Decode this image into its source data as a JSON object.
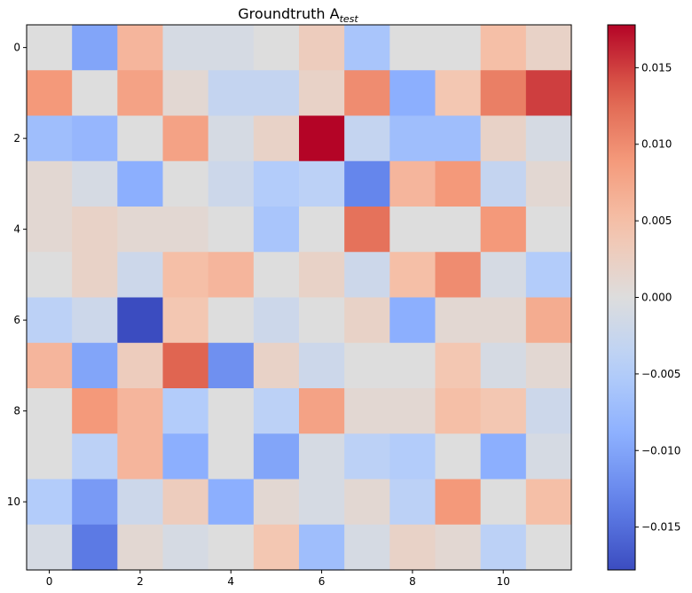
{
  "chart_data": {
    "type": "heatmap",
    "title": "Groundtruth A",
    "title_subscript": "test",
    "xlabel": "",
    "ylabel": "",
    "x_ticks": [
      "0",
      "2",
      "4",
      "6",
      "8",
      "10"
    ],
    "y_ticks": [
      "0",
      "2",
      "4",
      "6",
      "8",
      "10"
    ],
    "colormap": "coolwarm",
    "vmin": -0.0178,
    "vmax": 0.0178,
    "colorbar_ticks": [
      0.015,
      0.01,
      0.005,
      0.0,
      -0.005,
      -0.01,
      -0.015
    ],
    "colorbar_tick_labels": [
      "0.015",
      "0.010",
      "0.005",
      "0.000",
      "−0.005",
      "−0.010",
      "−0.015"
    ],
    "values": [
      [
        0.0,
        -0.01,
        0.006,
        -0.001,
        -0.001,
        0.0,
        0.003,
        -0.006,
        0.0,
        0.0,
        0.005,
        0.002
      ],
      [
        0.009,
        0.0,
        0.008,
        0.001,
        -0.003,
        -0.003,
        0.002,
        0.01,
        -0.009,
        0.004,
        0.011,
        0.015
      ],
      [
        -0.007,
        -0.008,
        0.0,
        0.008,
        -0.001,
        0.002,
        0.0178,
        -0.003,
        -0.007,
        -0.007,
        0.002,
        -0.001
      ],
      [
        0.001,
        -0.001,
        -0.009,
        0.0,
        -0.002,
        -0.005,
        -0.004,
        -0.013,
        0.006,
        0.009,
        -0.003,
        0.001
      ],
      [
        0.001,
        0.002,
        0.001,
        0.001,
        0.0,
        -0.006,
        0.0,
        0.012,
        0.0,
        0.0,
        0.009,
        0.0
      ],
      [
        0.0,
        0.002,
        -0.002,
        0.005,
        0.006,
        0.0,
        0.002,
        -0.002,
        0.005,
        0.01,
        -0.001,
        -0.005
      ],
      [
        -0.004,
        -0.002,
        -0.0178,
        0.004,
        0.0,
        -0.002,
        0.0,
        0.002,
        -0.009,
        0.001,
        0.001,
        0.007
      ],
      [
        0.006,
        -0.01,
        0.003,
        0.013,
        -0.012,
        0.002,
        -0.002,
        0.0,
        0.0,
        0.004,
        -0.001,
        0.001
      ],
      [
        0.0,
        0.009,
        0.006,
        -0.005,
        0.0,
        -0.004,
        0.008,
        0.001,
        0.001,
        0.005,
        0.004,
        -0.002
      ],
      [
        0.0,
        -0.004,
        0.006,
        -0.009,
        0.0,
        -0.01,
        -0.001,
        -0.004,
        -0.005,
        0.0,
        -0.009,
        -0.001
      ],
      [
        -0.005,
        -0.011,
        -0.002,
        0.003,
        -0.009,
        0.001,
        -0.001,
        0.001,
        -0.004,
        0.009,
        0.0,
        0.005
      ],
      [
        -0.001,
        -0.014,
        0.001,
        -0.001,
        0.0,
        0.004,
        -0.007,
        -0.001,
        0.002,
        0.001,
        -0.004,
        0.0
      ]
    ]
  }
}
